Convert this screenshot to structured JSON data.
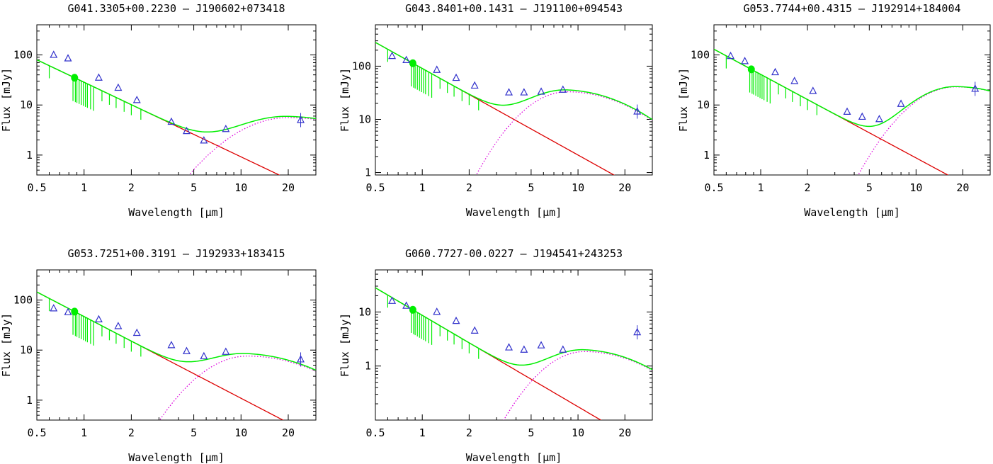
{
  "figure": {
    "x_axis_label": "Wavelength [μm]",
    "y_axis_label": "Flux [mJy]"
  },
  "colors": {
    "photosphere_fit": "#dd0000",
    "disk_excess": "#dd00dd",
    "total_model": "#00ee00",
    "observed_points": "#3333cc"
  },
  "chart_data": [
    {
      "type": "scatter",
      "title": "G041.3305+00.2230  –  J190602+073418",
      "xlabel": "Wavelength [μm]",
      "ylabel": "Flux [mJy]",
      "xscale": "log",
      "yscale": "log",
      "xlim": [
        0.5,
        30
      ],
      "ylim": [
        0.4,
        400
      ],
      "x_ticks": [
        "0.5",
        "1",
        "2",
        "5",
        "10",
        "20"
      ],
      "y_ticks": [
        "1",
        "10",
        "100"
      ],
      "photosphere": {
        "name": "stellar photosphere",
        "points": [
          [
            0.5,
            80
          ],
          [
            17.5,
            0.4
          ]
        ]
      },
      "disk": {
        "name": "dust excess",
        "peak_wavelength": 20,
        "peak_flux": 5.6,
        "start_wavelength": 4.6
      },
      "observed": {
        "name": "observed fluxes",
        "x": [
          0.64,
          0.79,
          1.24,
          1.65,
          2.17,
          3.6,
          4.5,
          5.8,
          8.0,
          24
        ],
        "y": [
          100,
          85,
          35,
          22,
          12.5,
          4.6,
          3.0,
          1.95,
          3.3,
          5.0
        ]
      }
    },
    {
      "type": "scatter",
      "title": "G043.8401+00.1431  –  J191100+094543",
      "xlabel": "Wavelength [μm]",
      "ylabel": "Flux [mJy]",
      "xscale": "log",
      "yscale": "log",
      "xlim": [
        0.5,
        30
      ],
      "ylim": [
        0.9,
        600
      ],
      "x_ticks": [
        "0.5",
        "1",
        "2",
        "5",
        "10",
        "20"
      ],
      "y_ticks": [
        "1",
        "10",
        "100"
      ],
      "photosphere": {
        "name": "stellar photosphere",
        "points": [
          [
            0.5,
            280
          ],
          [
            17,
            0.9
          ]
        ]
      },
      "disk": {
        "name": "dust excess",
        "peak_wavelength": 8.5,
        "peak_flux": 33,
        "start_wavelength": 2.2
      },
      "observed": {
        "name": "observed fluxes",
        "x": [
          0.64,
          0.79,
          1.24,
          1.65,
          2.17,
          3.6,
          4.5,
          5.8,
          8.0,
          24
        ],
        "y": [
          155,
          130,
          85,
          60,
          43,
          32,
          32,
          33,
          36,
          14
        ]
      }
    },
    {
      "type": "scatter",
      "title": "G053.7744+00.4315  –  J192914+184004",
      "xlabel": "Wavelength [μm]",
      "ylabel": "Flux [mJy]",
      "xscale": "log",
      "yscale": "log",
      "xlim": [
        0.5,
        30
      ],
      "ylim": [
        0.4,
        400
      ],
      "x_ticks": [
        "0.5",
        "1",
        "2",
        "5",
        "10",
        "20"
      ],
      "y_ticks": [
        "1",
        "10",
        "100"
      ],
      "photosphere": {
        "name": "stellar photosphere",
        "points": [
          [
            0.5,
            130
          ],
          [
            16,
            0.4
          ]
        ]
      },
      "disk": {
        "name": "dust excess",
        "peak_wavelength": 18,
        "peak_flux": 23,
        "start_wavelength": 4.2
      },
      "observed": {
        "name": "observed fluxes",
        "x": [
          0.64,
          0.79,
          1.24,
          1.65,
          2.17,
          3.6,
          4.5,
          5.8,
          8.0,
          24
        ],
        "y": [
          95,
          75,
          45,
          30,
          19,
          7.3,
          5.8,
          5.2,
          10.5,
          21
        ]
      }
    },
    {
      "type": "scatter",
      "title": "G053.7251+00.3191  –  J192933+183415",
      "xlabel": "Wavelength [μm]",
      "ylabel": "Flux [mJy]",
      "xscale": "log",
      "yscale": "log",
      "xlim": [
        0.5,
        30
      ],
      "ylim": [
        0.4,
        400
      ],
      "x_ticks": [
        "0.5",
        "1",
        "2",
        "5",
        "10",
        "20"
      ],
      "y_ticks": [
        "1",
        "10",
        "100"
      ],
      "photosphere": {
        "name": "stellar photosphere",
        "points": [
          [
            0.5,
            145
          ],
          [
            18.5,
            0.4
          ]
        ]
      },
      "disk": {
        "name": "dust excess",
        "peak_wavelength": 11,
        "peak_flux": 7.6,
        "start_wavelength": 3.0
      },
      "observed": {
        "name": "observed fluxes",
        "x": [
          0.64,
          0.79,
          1.24,
          1.65,
          2.17,
          3.6,
          4.5,
          5.8,
          8.0,
          24
        ],
        "y": [
          68,
          57,
          41,
          30,
          22,
          12.5,
          9.5,
          7.5,
          9.2,
          6.5
        ]
      }
    },
    {
      "type": "scatter",
      "title": "G060.7727-00.0227  –  J194541+243253",
      "xlabel": "Wavelength [μm]",
      "ylabel": "Flux [mJy]",
      "xscale": "log",
      "yscale": "log",
      "xlim": [
        0.5,
        30
      ],
      "ylim": [
        0.1,
        60
      ],
      "x_ticks": [
        "0.5",
        "1",
        "2",
        "5",
        "10",
        "20"
      ],
      "y_ticks": [
        "1",
        "10"
      ],
      "photosphere": {
        "name": "stellar photosphere",
        "points": [
          [
            0.5,
            28
          ],
          [
            14,
            0.1
          ]
        ]
      },
      "disk": {
        "name": "dust excess",
        "peak_wavelength": 11,
        "peak_flux": 1.85,
        "start_wavelength": 3.3
      },
      "observed": {
        "name": "observed fluxes",
        "x": [
          0.64,
          0.79,
          1.24,
          1.65,
          2.17,
          3.6,
          4.5,
          5.8,
          8.0,
          24
        ],
        "y": [
          16,
          13,
          10,
          6.8,
          4.5,
          2.2,
          2.0,
          2.4,
          2.0,
          4.2
        ]
      }
    }
  ]
}
